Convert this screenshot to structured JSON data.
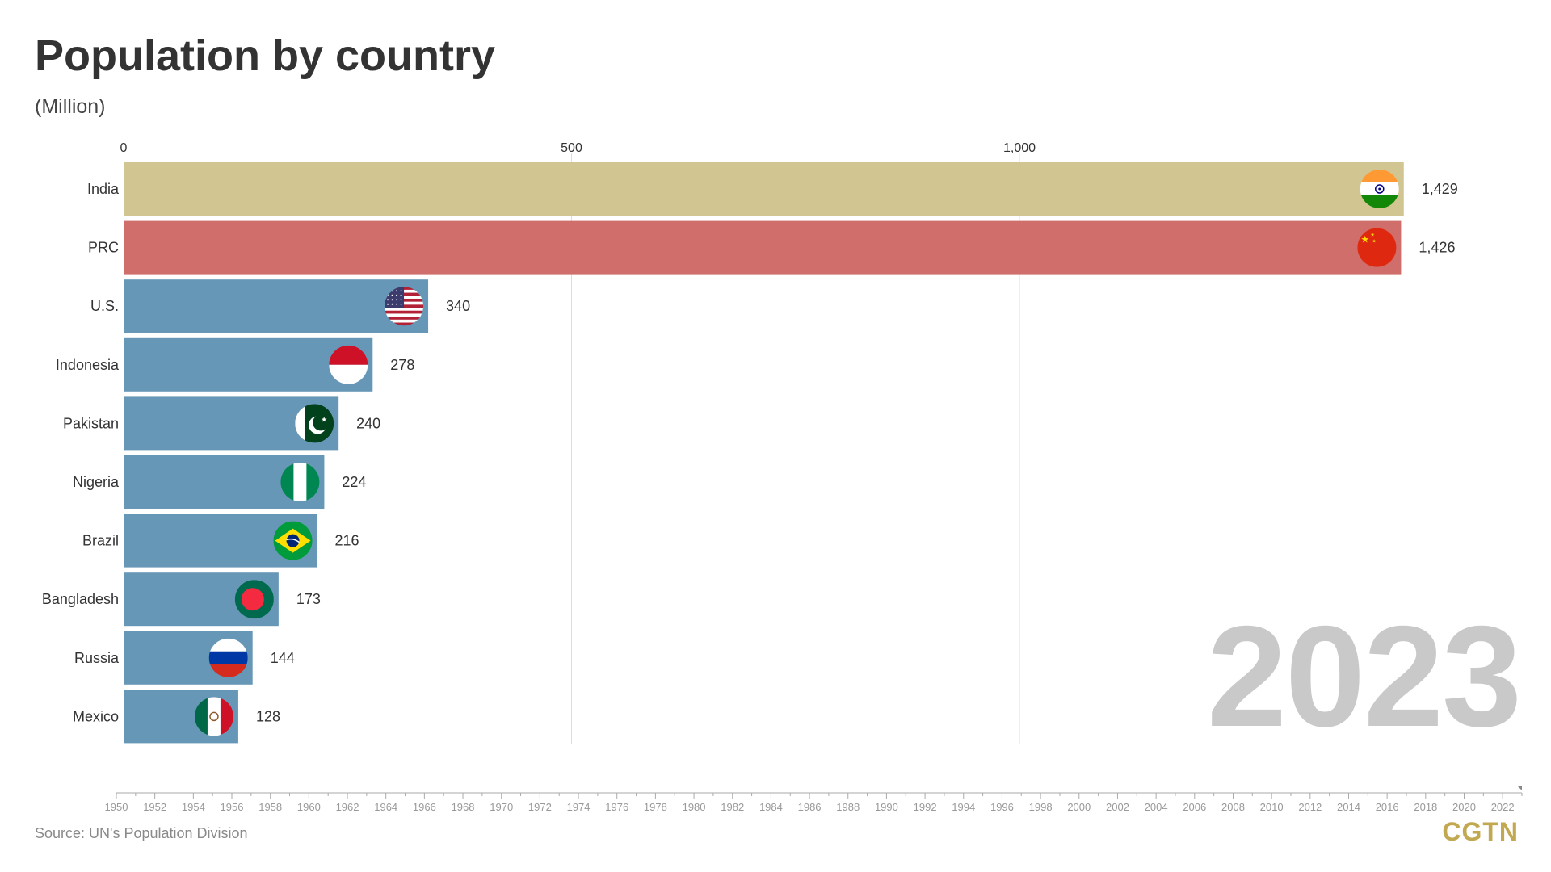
{
  "title": "Population by country",
  "subtitle": "(Million)",
  "year": "2023",
  "source": "Source: UN's Population Division",
  "brand": "CGTN",
  "colors": {
    "india": "#d1c592",
    "prc": "#cf6e6a",
    "others": "#6797b6",
    "gridline": "#dddddd",
    "year_text": "#c9c9c9",
    "brand": "#c2a850"
  },
  "chart_data": {
    "type": "bar",
    "orientation": "horizontal",
    "categories": [
      "India",
      "PRC",
      "U.S.",
      "Indonesia",
      "Pakistan",
      "Nigeria",
      "Brazil",
      "Bangladesh",
      "Russia",
      "Mexico"
    ],
    "values": [
      1429,
      1426,
      340,
      278,
      240,
      224,
      216,
      173,
      144,
      128
    ],
    "value_labels": [
      "1,429",
      "1,426",
      "340",
      "278",
      "240",
      "224",
      "216",
      "173",
      "144",
      "128"
    ],
    "flags": [
      "flag-india-icon",
      "flag-china-icon",
      "flag-usa-icon",
      "flag-indonesia-icon",
      "flag-pakistan-icon",
      "flag-nigeria-icon",
      "flag-brazil-icon",
      "flag-bangladesh-icon",
      "flag-russia-icon",
      "flag-mexico-icon"
    ],
    "xlim": [
      0,
      1430
    ],
    "x_ticks": [
      0,
      500,
      1000
    ],
    "x_tick_labels": [
      "0",
      "500",
      "1,000"
    ],
    "grid": true,
    "timeline": {
      "start": 1950,
      "end": 2023,
      "labels": [
        "1950",
        "1952",
        "1954",
        "1956",
        "1958",
        "1960",
        "1962",
        "1964",
        "1966",
        "1968",
        "1970",
        "1972",
        "1974",
        "1976",
        "1978",
        "1980",
        "1982",
        "1984",
        "1986",
        "1988",
        "1990",
        "1992",
        "1994",
        "1996",
        "1998",
        "2000",
        "2002",
        "2004",
        "2006",
        "2008",
        "2010",
        "2012",
        "2014",
        "2016",
        "2018",
        "2020",
        "2022"
      ]
    }
  }
}
